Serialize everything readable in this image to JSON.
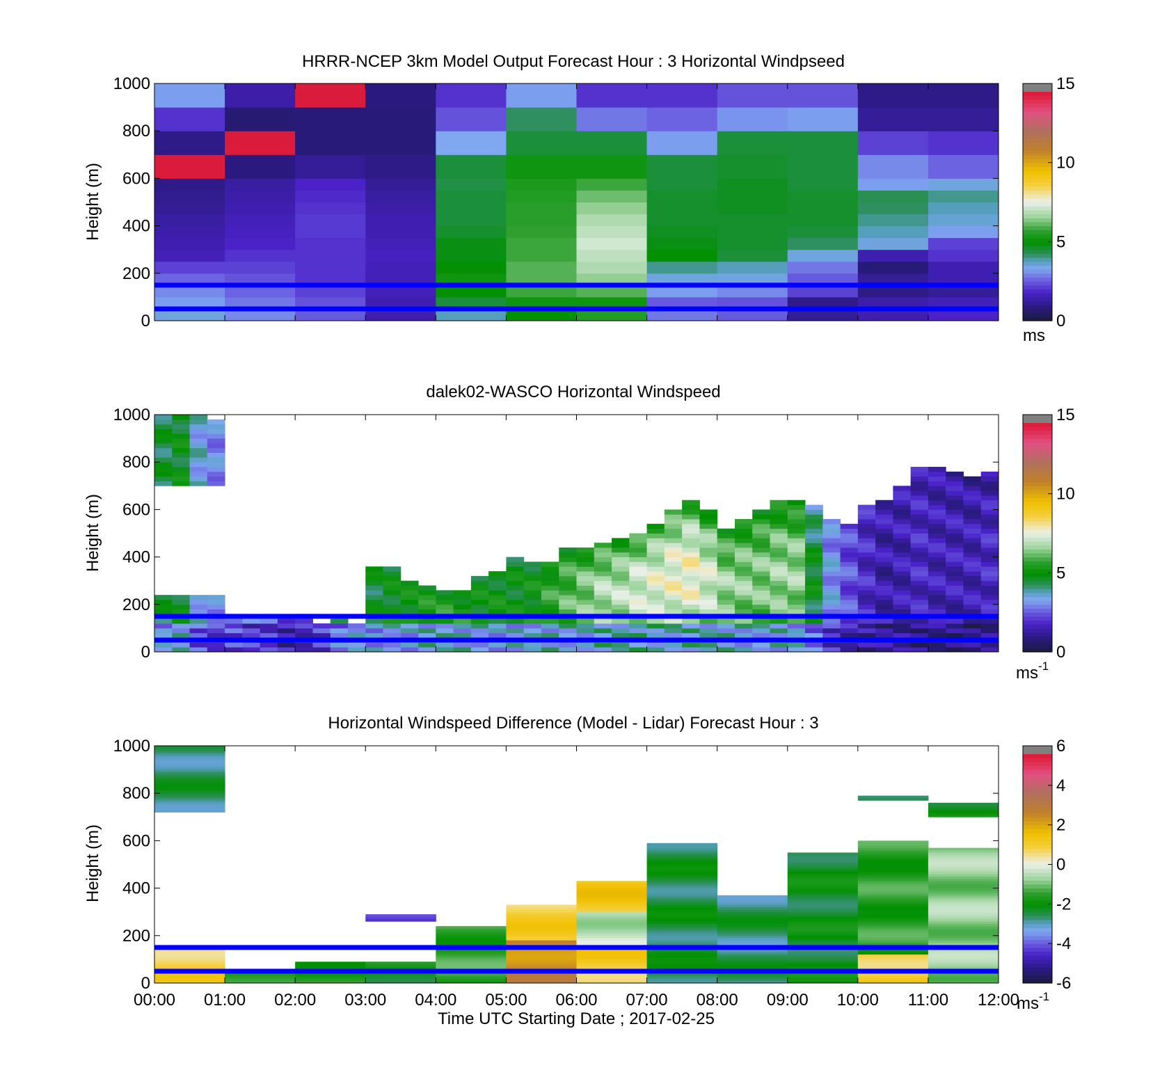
{
  "figure": {
    "xlabel": "Time UTC  Starting Date ; 2017-02-25",
    "x_ticks": [
      "00:00",
      "01:00",
      "02:00",
      "03:00",
      "04:00",
      "05:00",
      "06:00",
      "07:00",
      "08:00",
      "09:00",
      "10:00",
      "11:00",
      "12:00"
    ],
    "colors": {
      "overlay_lines": "#0000ff",
      "colormap_stops": [
        "#1a1a40",
        "#3a1aa0",
        "#4f2ed6",
        "#7f9ff0",
        "#2f8fc0",
        "#009000",
        "#2fa030",
        "#bfe0bf",
        "#f0f0f0",
        "#f0c000",
        "#c08030",
        "#c06060",
        "#e0306a",
        "#808080"
      ]
    }
  },
  "chart_data": [
    {
      "type": "heatmap",
      "title": "HRRR-NCEP 3km Model Output   Forecast Hour : 3 Horizontal Windpseed",
      "ylabel": "Height (m)",
      "ylim": [
        0,
        1000
      ],
      "y_ticks": [
        "0",
        "200",
        "400",
        "600",
        "800",
        "1000"
      ],
      "xlim_hours": [
        0,
        12
      ],
      "colorbar": {
        "min": 0,
        "max": 15,
        "ticks": [
          "0",
          "5",
          "10",
          "15"
        ],
        "unit_label": "ms"
      },
      "reference_lines_m": [
        50,
        150
      ],
      "hour_columns": [
        0,
        1,
        2,
        3,
        4,
        5,
        6,
        7,
        8,
        9,
        10,
        11
      ],
      "height_levels_m": [
        0,
        50,
        100,
        150,
        200,
        250,
        300,
        350,
        400,
        450,
        500,
        550,
        600,
        700,
        800,
        900,
        1000
      ],
      "values": [
        [
          3.5,
          3.0,
          2.5,
          1.5,
          3.8,
          5.0,
          5.5,
          2.8,
          2.5,
          1.2,
          1.5,
          1.8
        ],
        [
          3.2,
          2.8,
          2.4,
          1.5,
          4.5,
          5.2,
          5.2,
          2.5,
          2.4,
          1.0,
          1.4,
          1.6
        ],
        [
          3.0,
          2.6,
          2.2,
          1.6,
          5.0,
          5.8,
          6.0,
          3.2,
          3.0,
          2.2,
          1.0,
          1.2
        ],
        [
          2.6,
          2.4,
          2.0,
          1.6,
          5.2,
          6.0,
          6.5,
          3.5,
          3.5,
          2.5,
          1.2,
          1.5
        ],
        [
          2.2,
          2.2,
          2.0,
          1.6,
          5.0,
          6.0,
          6.8,
          4.0,
          3.8,
          2.8,
          0.8,
          1.5
        ],
        [
          1.6,
          2.0,
          2.0,
          1.7,
          4.8,
          5.8,
          7.0,
          5.0,
          4.5,
          3.5,
          1.5,
          2.0
        ],
        [
          1.5,
          1.8,
          2.0,
          1.6,
          4.8,
          5.8,
          7.2,
          4.8,
          4.6,
          4.2,
          3.5,
          2.2
        ],
        [
          1.4,
          1.7,
          2.1,
          1.5,
          4.6,
          5.7,
          7.0,
          4.7,
          4.6,
          4.5,
          3.8,
          3.2
        ],
        [
          1.3,
          1.6,
          2.1,
          1.5,
          4.5,
          5.6,
          6.8,
          4.6,
          4.6,
          4.6,
          4.0,
          3.6
        ],
        [
          1.2,
          1.5,
          2.0,
          1.4,
          4.5,
          5.6,
          6.5,
          4.6,
          4.7,
          4.6,
          4.2,
          3.8
        ],
        [
          1.1,
          1.4,
          1.9,
          1.3,
          4.5,
          5.5,
          6.2,
          4.6,
          4.7,
          4.6,
          4.3,
          4.0
        ],
        [
          1.0,
          1.3,
          1.8,
          1.2,
          4.4,
          5.4,
          5.8,
          4.5,
          4.7,
          4.5,
          3.2,
          3.5
        ],
        [
          14.5,
          0.9,
          1.2,
          1.0,
          4.5,
          5.2,
          5.2,
          4.5,
          4.6,
          4.5,
          3.0,
          2.6
        ],
        [
          1.0,
          14.5,
          0.8,
          0.8,
          3.3,
          4.5,
          4.5,
          3.2,
          4.5,
          4.5,
          2.2,
          2.0
        ],
        [
          2.0,
          0.7,
          0.8,
          0.8,
          2.4,
          4.2,
          2.8,
          2.6,
          3.1,
          3.2,
          1.2,
          1.2
        ],
        [
          3.2,
          1.4,
          14.5,
          0.9,
          2.0,
          3.2,
          2.0,
          2.0,
          2.4,
          2.4,
          1.0,
          1.0
        ]
      ]
    },
    {
      "type": "heatmap",
      "title": "dalek02-WASCO  Horizontal Windspeed",
      "ylabel": "Height (m)",
      "ylim": [
        0,
        1000
      ],
      "y_ticks": [
        "0",
        "200",
        "400",
        "600",
        "800",
        "1000"
      ],
      "xlim_hours": [
        0,
        12
      ],
      "colorbar": {
        "min": 0,
        "max": 15,
        "ticks": [
          "0",
          "5",
          "10",
          "15"
        ],
        "unit_label": "ms",
        "unit_exponent": "-1"
      },
      "reference_lines_m": [
        50,
        150
      ],
      "time_step_hours": 0.25,
      "height_step_m": 20,
      "profiles": [
        {
          "t": 0.0,
          "top": 1000,
          "base": 4.5,
          "trend": 0.0,
          "gap_low": 230,
          "gap_high": 690
        },
        {
          "t": 0.25,
          "top": 1000,
          "base": 4.8,
          "trend": 0.0,
          "gap_low": 230,
          "gap_high": 700
        },
        {
          "t": 0.5,
          "top": 1000,
          "base": 3.5,
          "trend": 0.0,
          "gap_low": 230,
          "gap_high": 700
        },
        {
          "t": 0.75,
          "top": 980,
          "base": 3.0,
          "trend": 0.0,
          "gap_low": 230,
          "gap_high": 700
        },
        {
          "t": 1.0,
          "top": 150,
          "base": 3.2,
          "trend": 0.0
        },
        {
          "t": 1.25,
          "top": 140,
          "base": 2.8,
          "trend": 0.0
        },
        {
          "t": 1.5,
          "top": 140,
          "base": 2.6,
          "trend": 0.0
        },
        {
          "t": 1.75,
          "top": 130,
          "base": 2.2,
          "trend": 0.0
        },
        {
          "t": 2.0,
          "top": 150,
          "base": 2.4,
          "trend": 0.0
        },
        {
          "t": 2.25,
          "top": 120,
          "base": 3.0,
          "trend": 0.0
        },
        {
          "t": 2.5,
          "top": 130,
          "base": 4.0,
          "trend": 0.0
        },
        {
          "t": 2.75,
          "top": 110,
          "base": 4.5,
          "trend": 0.0
        },
        {
          "t": 3.0,
          "top": 360,
          "base": 4.6,
          "trend": 0.0
        },
        {
          "t": 3.25,
          "top": 350,
          "base": 4.7,
          "trend": 0.2
        },
        {
          "t": 3.5,
          "top": 290,
          "base": 4.8,
          "trend": 0.3
        },
        {
          "t": 3.75,
          "top": 270,
          "base": 5.0,
          "trend": 0.3
        },
        {
          "t": 4.0,
          "top": 260,
          "base": 5.0,
          "trend": 0.4
        },
        {
          "t": 4.25,
          "top": 260,
          "base": 5.0,
          "trend": 0.3
        },
        {
          "t": 4.5,
          "top": 310,
          "base": 4.8,
          "trend": 0.2
        },
        {
          "t": 4.75,
          "top": 340,
          "base": 4.8,
          "trend": 0.2
        },
        {
          "t": 5.0,
          "top": 390,
          "base": 4.7,
          "trend": 0.2
        },
        {
          "t": 5.25,
          "top": 370,
          "base": 4.8,
          "trend": 0.3
        },
        {
          "t": 5.5,
          "top": 380,
          "base": 5.0,
          "trend": 0.6
        },
        {
          "t": 5.75,
          "top": 440,
          "base": 5.0,
          "trend": 1.0
        },
        {
          "t": 6.0,
          "top": 440,
          "base": 5.2,
          "trend": 1.2
        },
        {
          "t": 6.25,
          "top": 460,
          "base": 5.3,
          "trend": 1.5
        },
        {
          "t": 6.5,
          "top": 470,
          "base": 5.3,
          "trend": 1.6
        },
        {
          "t": 6.75,
          "top": 500,
          "base": 5.4,
          "trend": 1.8
        },
        {
          "t": 7.0,
          "top": 540,
          "base": 5.4,
          "trend": 2.0
        },
        {
          "t": 7.25,
          "top": 600,
          "base": 5.4,
          "trend": 2.2
        },
        {
          "t": 7.5,
          "top": 640,
          "base": 5.3,
          "trend": 2.4
        },
        {
          "t": 7.75,
          "top": 590,
          "base": 5.2,
          "trend": 2.0
        },
        {
          "t": 8.0,
          "top": 520,
          "base": 5.0,
          "trend": 1.6
        },
        {
          "t": 8.25,
          "top": 560,
          "base": 5.0,
          "trend": 1.5
        },
        {
          "t": 8.5,
          "top": 600,
          "base": 5.0,
          "trend": 1.4
        },
        {
          "t": 8.75,
          "top": 630,
          "base": 5.0,
          "trend": 1.6
        },
        {
          "t": 9.0,
          "top": 640,
          "base": 4.8,
          "trend": 1.8
        },
        {
          "t": 9.25,
          "top": 610,
          "base": 3.6,
          "trend": 1.2
        },
        {
          "t": 9.5,
          "top": 560,
          "base": 2.8,
          "trend": 0.4
        },
        {
          "t": 9.75,
          "top": 540,
          "base": 2.2,
          "trend": 0.2
        },
        {
          "t": 10.0,
          "top": 610,
          "base": 1.8,
          "trend": 0.0
        },
        {
          "t": 10.25,
          "top": 640,
          "base": 1.6,
          "trend": -0.2
        },
        {
          "t": 10.5,
          "top": 700,
          "base": 1.5,
          "trend": 0.0
        },
        {
          "t": 10.75,
          "top": 780,
          "base": 1.5,
          "trend": 0.3
        },
        {
          "t": 11.0,
          "top": 780,
          "base": 1.4,
          "trend": 0.2
        },
        {
          "t": 11.25,
          "top": 760,
          "base": 1.3,
          "trend": 0.3
        },
        {
          "t": 11.5,
          "top": 740,
          "base": 1.2,
          "trend": 0.4
        },
        {
          "t": 11.75,
          "top": 750,
          "base": 1.3,
          "trend": 0.5
        }
      ]
    },
    {
      "type": "heatmap",
      "title": "Horizontal Windspeed Difference (Model - Lidar) Forecast Hour : 3",
      "ylabel": "Height (m)",
      "ylim": [
        0,
        1000
      ],
      "y_ticks": [
        "0",
        "200",
        "400",
        "600",
        "800",
        "1000"
      ],
      "xlim_hours": [
        0,
        12
      ],
      "colorbar": {
        "min": -6,
        "max": 6,
        "ticks": [
          "-6",
          "-4",
          "-2",
          "0",
          "2",
          "4",
          "6"
        ],
        "unit_label": "ms",
        "unit_exponent": "-1"
      },
      "reference_lines_m": [
        50,
        150
      ],
      "columns": [
        {
          "h": 0,
          "top": 1000,
          "bottom": 720,
          "base": -2.6
        },
        {
          "h": 0,
          "top": 140,
          "bottom": 0,
          "base": 0.9
        },
        {
          "h": 1,
          "top": 60,
          "bottom": 0,
          "base": -1.8
        },
        {
          "h": 2,
          "top": 90,
          "bottom": 0,
          "base": -1.6
        },
        {
          "h": 3,
          "top": 290,
          "bottom": 260,
          "base": -4.2
        },
        {
          "h": 3,
          "top": 90,
          "bottom": 0,
          "base": -2.0
        },
        {
          "h": 4,
          "top": 240,
          "bottom": 0,
          "base": -1.5
        },
        {
          "h": 5,
          "top": 330,
          "bottom": 180,
          "base": 1.0
        },
        {
          "h": 5,
          "top": 180,
          "bottom": 0,
          "base": 2.5
        },
        {
          "h": 6,
          "top": 430,
          "bottom": 300,
          "base": 1.2
        },
        {
          "h": 6,
          "top": 300,
          "bottom": 150,
          "base": -0.4
        },
        {
          "h": 6,
          "top": 150,
          "bottom": 0,
          "base": 1.0
        },
        {
          "h": 7,
          "top": 590,
          "bottom": 0,
          "base": -2.4
        },
        {
          "h": 8,
          "top": 370,
          "bottom": 0,
          "base": -2.6
        },
        {
          "h": 9,
          "top": 550,
          "bottom": 0,
          "base": -2.2
        },
        {
          "h": 10,
          "top": 600,
          "bottom": 120,
          "base": -1.6
        },
        {
          "h": 10,
          "top": 120,
          "bottom": 0,
          "base": 1.0
        },
        {
          "h": 10,
          "top": 790,
          "bottom": 770,
          "base": -2.6
        },
        {
          "h": 11,
          "top": 570,
          "bottom": 0,
          "base": -0.8
        },
        {
          "h": 11,
          "top": 760,
          "bottom": 700,
          "base": -2.0
        }
      ]
    }
  ]
}
